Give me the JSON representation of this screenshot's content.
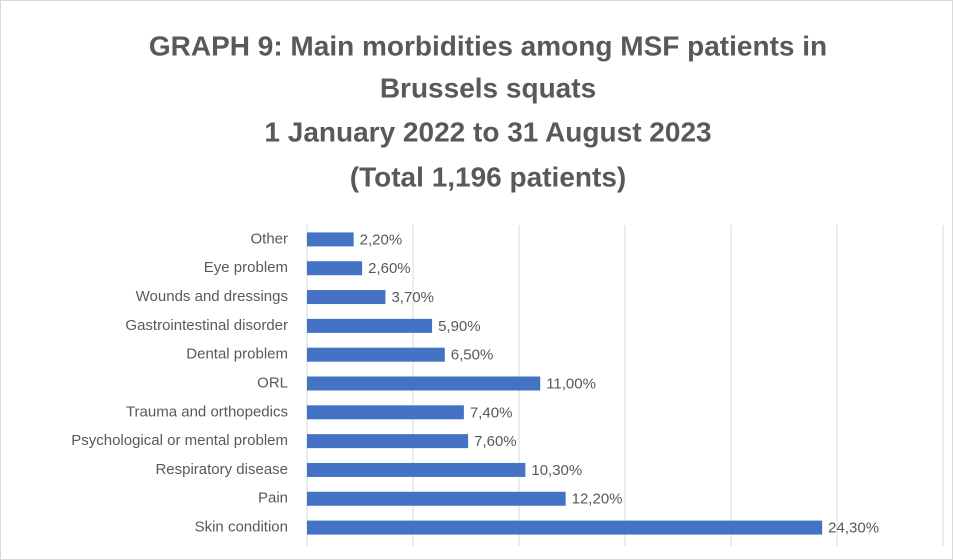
{
  "chart_data": {
    "type": "barh",
    "title": [
      "GRAPH 9: Main morbidities among MSF patients in",
      "Brussels squats",
      "1 January 2022 to 31 August 2023",
      "(Total 1,196 patients)"
    ],
    "categories": [
      "Other",
      "Eye problem",
      "Wounds and dressings",
      "Gastrointestinal disorder",
      "Dental problem",
      "ORL",
      "Trauma and orthopedics",
      "Psychological or mental problem",
      "Respiratory disease",
      "Pain",
      "Skin condition"
    ],
    "values": [
      2.2,
      2.6,
      3.7,
      5.9,
      6.5,
      11.0,
      7.4,
      7.6,
      10.3,
      12.2,
      24.3
    ],
    "value_labels": [
      "2,20%",
      "2,60%",
      "3,70%",
      "5,90%",
      "6,50%",
      "11,00%",
      "7,40%",
      "7,60%",
      "10,30%",
      "12,20%",
      "24,30%"
    ],
    "color": "#4472c4",
    "xlim": [
      0,
      30
    ],
    "xticks": [
      0,
      5,
      10,
      15,
      20,
      25,
      30
    ],
    "grid": true
  }
}
